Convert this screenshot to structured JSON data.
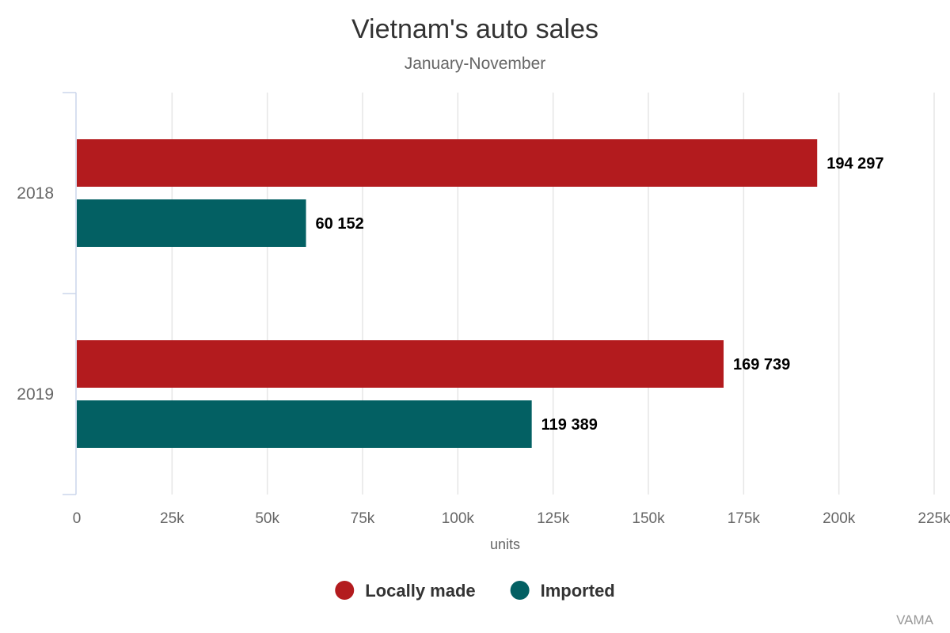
{
  "chart_data": {
    "type": "bar",
    "orientation": "horizontal",
    "title": "Vietnam's auto sales",
    "subtitle": "January-November",
    "categories": [
      "2018",
      "2019"
    ],
    "series": [
      {
        "name": "Locally made",
        "color": "#b31b1e",
        "values": [
          194297,
          169739
        ],
        "labels": [
          "194 297",
          "169 739"
        ]
      },
      {
        "name": "Imported",
        "color": "#036063",
        "values": [
          60152,
          119389
        ],
        "labels": [
          "60 152",
          "119 389"
        ]
      }
    ],
    "xlabel": "units",
    "ylabel": "",
    "xlim": [
      0,
      225000
    ],
    "x_ticks": [
      0,
      25000,
      50000,
      75000,
      100000,
      125000,
      150000,
      175000,
      200000,
      225000
    ],
    "x_tick_labels": [
      "0",
      "25k",
      "50k",
      "75k",
      "100k",
      "125k",
      "150k",
      "175k",
      "200k",
      "225k"
    ],
    "grid": true,
    "legend_position": "bottom-center",
    "credit": "VAMA"
  }
}
